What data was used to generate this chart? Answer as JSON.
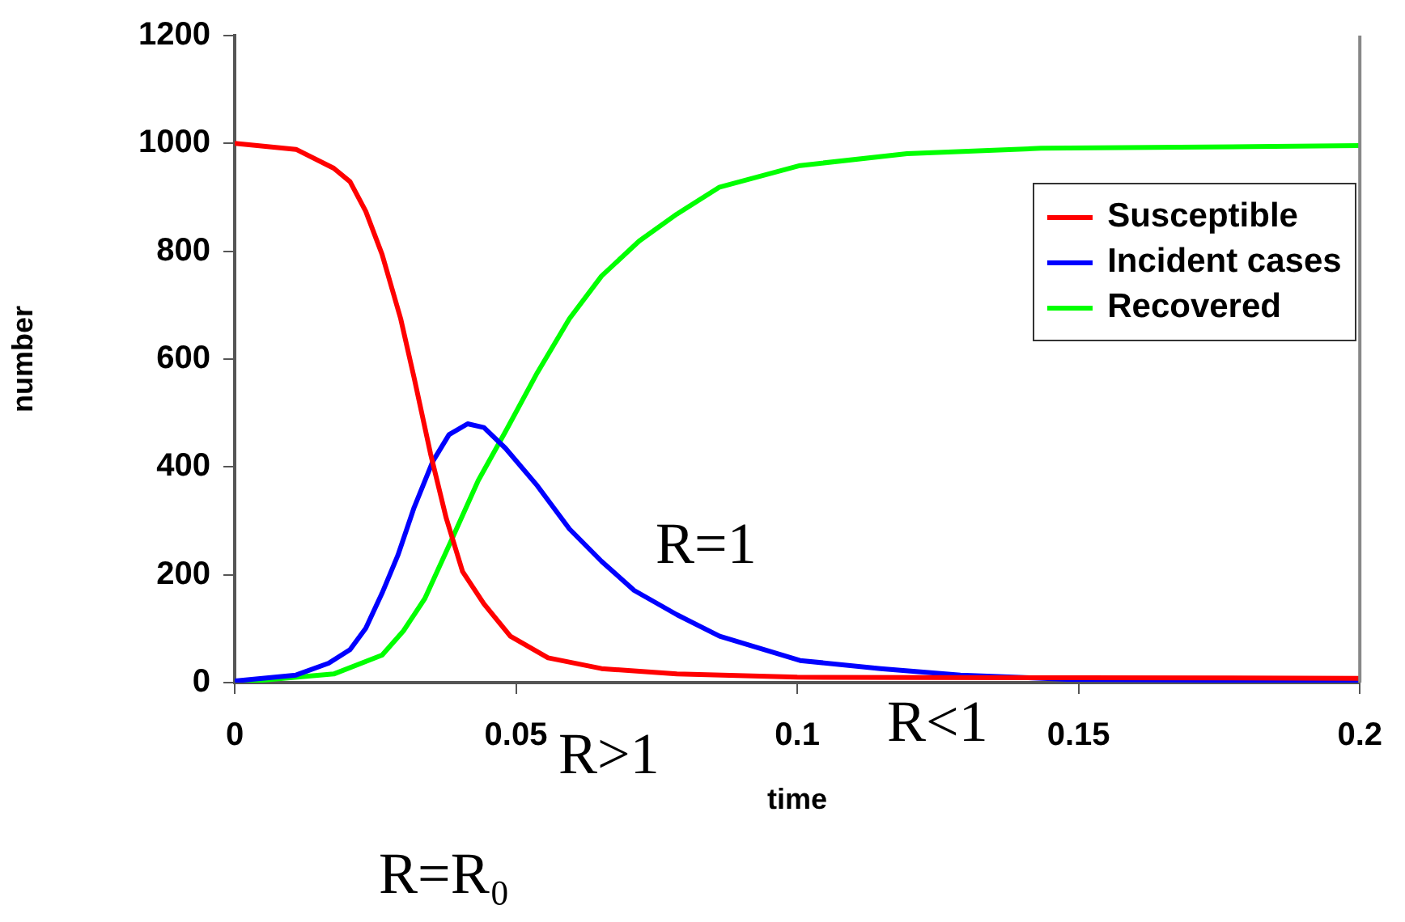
{
  "chart_data": {
    "type": "line",
    "xlabel": "time",
    "ylabel": "number",
    "xlim": [
      0,
      0.2
    ],
    "xticks": [
      0,
      0.05,
      0.1,
      0.15,
      0.2
    ],
    "ylim": [
      0,
      1200
    ],
    "yticks": [
      0,
      200,
      400,
      600,
      800,
      1000,
      1200
    ],
    "grid": false,
    "legend": "right",
    "marker": "none",
    "line_style": "solid",
    "annotations": [
      "R=1",
      "R>1",
      "R<1",
      "R=R₀"
    ],
    "series": [
      {
        "name": "Susceptible",
        "color": "#ff0000",
        "x": [
          0,
          0.0109,
          0.0176,
          0.0205,
          0.0233,
          0.0262,
          0.0295,
          0.0319,
          0.0348,
          0.0376,
          0.0405,
          0.0443,
          0.049,
          0.0557,
          0.0652,
          0.0786,
          0.1,
          0.15,
          0.2
        ],
        "values": [
          1000,
          989,
          954,
          929,
          874,
          794,
          675,
          565,
          425,
          305,
          206,
          146,
          86,
          46,
          26,
          16,
          10,
          9,
          8
        ]
      },
      {
        "name": "Incident cases",
        "color": "#0000ff",
        "x": [
          0,
          0.0109,
          0.0167,
          0.0205,
          0.0233,
          0.0262,
          0.029,
          0.0319,
          0.0352,
          0.0381,
          0.0414,
          0.0443,
          0.0481,
          0.0538,
          0.0595,
          0.0652,
          0.071,
          0.0786,
          0.0862,
          0.1005,
          0.1148,
          0.129,
          0.148,
          0.2
        ],
        "values": [
          3,
          14,
          36,
          61,
          101,
          166,
          236,
          325,
          410,
          460,
          480,
          473,
          435,
          365,
          285,
          225,
          171,
          126,
          86,
          41,
          26,
          14,
          6,
          3
        ]
      },
      {
        "name": "Recovered",
        "color": "#00ff00",
        "x": [
          0,
          0.0176,
          0.0262,
          0.03,
          0.0338,
          0.0386,
          0.0433,
          0.0481,
          0.0538,
          0.0595,
          0.0652,
          0.0719,
          0.0786,
          0.0862,
          0.1005,
          0.1195,
          0.1433,
          0.181,
          0.2
        ],
        "values": [
          0,
          16,
          51,
          96,
          156,
          266,
          375,
          465,
          575,
          675,
          754,
          819,
          869,
          919,
          959,
          981,
          991,
          994,
          996
        ]
      }
    ]
  }
}
